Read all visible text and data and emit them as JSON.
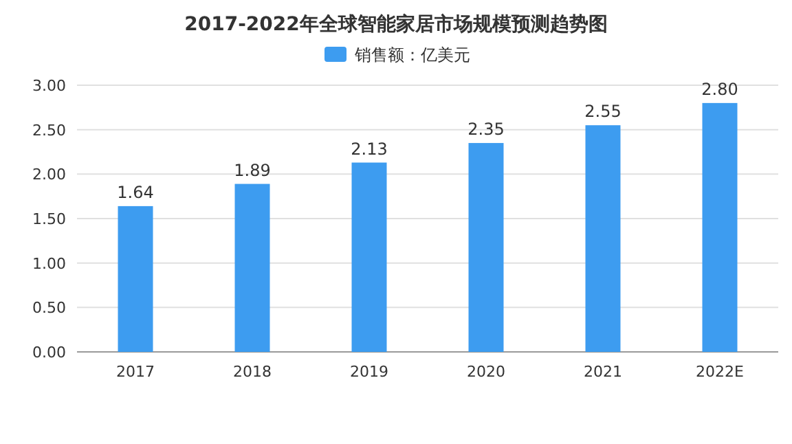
{
  "chart_data": {
    "type": "bar",
    "title": "2017-2022年全球智能家居市场规模预测趋势图",
    "categories": [
      "2017",
      "2018",
      "2019",
      "2020",
      "2021",
      "2022E"
    ],
    "series": [
      {
        "name": "销售额：亿美元",
        "color": "#3d9cf0",
        "values": [
          1.64,
          1.89,
          2.13,
          2.35,
          2.55,
          2.8
        ],
        "value_labels": [
          "1.64",
          "1.89",
          "2.13",
          "2.35",
          "2.55",
          "2.80"
        ]
      }
    ],
    "ylim": [
      0,
      3
    ],
    "yticks": [
      {
        "value": 0,
        "label": "0.00"
      },
      {
        "value": 0.5,
        "label": "0.50"
      },
      {
        "value": 1,
        "label": "1.00"
      },
      {
        "value": 1.5,
        "label": "1.50"
      },
      {
        "value": 2,
        "label": "2.00"
      },
      {
        "value": 2.5,
        "label": "2.50"
      },
      {
        "value": 3,
        "label": "3.00"
      }
    ],
    "grid": "y",
    "legend": "top"
  }
}
